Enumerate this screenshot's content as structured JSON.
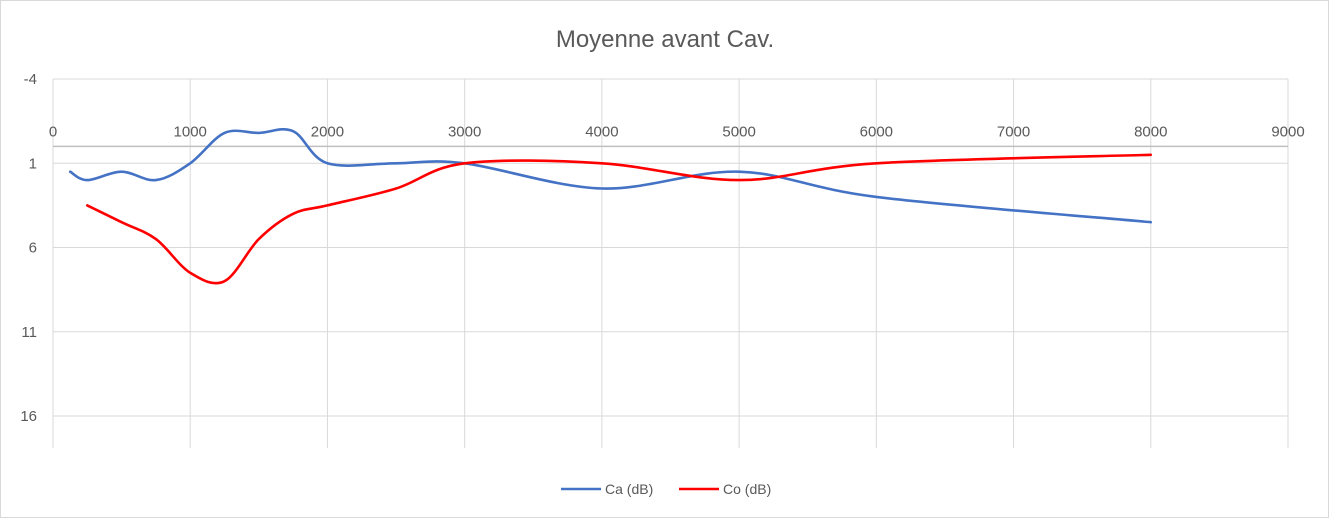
{
  "chart_data": {
    "type": "line",
    "title": "Moyenne avant Cav.",
    "xlabel": "",
    "ylabel": "",
    "xlim": [
      0,
      9000
    ],
    "ylim": [
      -4,
      21
    ],
    "y_reversed": true,
    "grid": true,
    "legend_position": "bottom",
    "x_ticks": [
      0,
      1000,
      2000,
      3000,
      4000,
      5000,
      6000,
      7000,
      8000,
      9000
    ],
    "x_tick_labels": [
      "0",
      "1000",
      "2000",
      "3000",
      "4000",
      "5000",
      "6000",
      "7000",
      "8000",
      "9000"
    ],
    "y_ticks": [
      -4,
      1,
      6,
      11,
      16
    ],
    "y_tick_labels": [
      "-4",
      "1",
      "6",
      "11",
      "16"
    ],
    "series": [
      {
        "name": "Ca (dB)",
        "color": "#4472c4",
        "x": [
          125,
          250,
          500,
          750,
          1000,
          1250,
          1500,
          1750,
          2000,
          2500,
          3000,
          4000,
          5000,
          6000,
          8000
        ],
        "y": [
          1.5,
          2.0,
          1.5,
          2.0,
          1.0,
          -0.8,
          -0.8,
          -0.9,
          1.0,
          1.0,
          1.0,
          2.5,
          1.5,
          3.0,
          4.5
        ]
      },
      {
        "name": "Co (dB)",
        "color": "#ff0000",
        "x": [
          250,
          500,
          750,
          1000,
          1250,
          1500,
          1750,
          2000,
          2500,
          3000,
          4000,
          5000,
          6000,
          8000
        ],
        "y": [
          3.5,
          4.5,
          5.5,
          7.5,
          8.0,
          5.5,
          4.0,
          3.5,
          2.5,
          1.0,
          1.0,
          2.0,
          1.0,
          0.5
        ]
      }
    ]
  }
}
